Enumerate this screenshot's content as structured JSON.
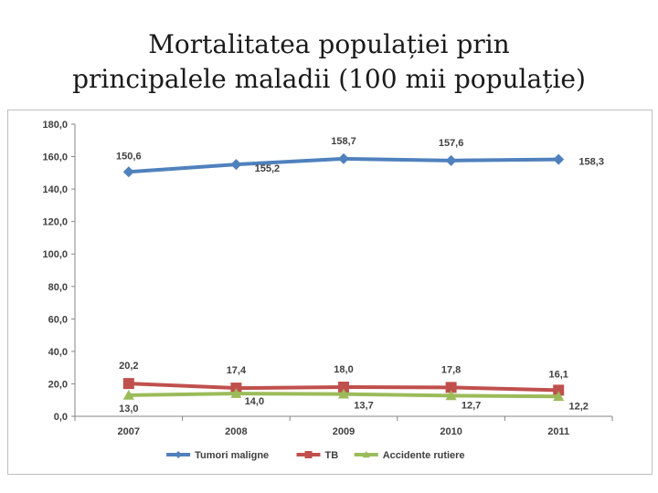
{
  "title_lines": [
    "Mortalitatea populației prin",
    "principalele maladii (100 mii populație)"
  ],
  "chart_data": {
    "type": "line",
    "categories": [
      "2007",
      "2008",
      "2009",
      "2010",
      "2011"
    ],
    "ylim": [
      0,
      180
    ],
    "yticks": [
      "0,0",
      "20,0",
      "40,0",
      "60,0",
      "80,0",
      "100,0",
      "120,0",
      "140,0",
      "160,0",
      "180,0"
    ],
    "grid": false,
    "legend": "bottom",
    "series": [
      {
        "name": "Tumori maligne",
        "color": "#4F81BD",
        "marker": "diamond",
        "values": [
          150.6,
          155.2,
          158.7,
          157.6,
          158.3
        ],
        "labels": [
          "150,6",
          "155,2",
          "158,7",
          "157,6",
          "158,3"
        ]
      },
      {
        "name": "TB",
        "color": "#C0504D",
        "marker": "square",
        "values": [
          20.2,
          17.4,
          18.0,
          17.8,
          16.1
        ],
        "labels": [
          "20,2",
          "17,4",
          "18,0",
          "17,8",
          "16,1"
        ]
      },
      {
        "name": "Accidente rutiere",
        "color": "#9BBB59",
        "marker": "triangle",
        "values": [
          13.0,
          14.0,
          13.7,
          12.7,
          12.2
        ],
        "labels": [
          "13,0",
          "14,0",
          "13,7",
          "12,7",
          "12,2"
        ]
      }
    ]
  }
}
